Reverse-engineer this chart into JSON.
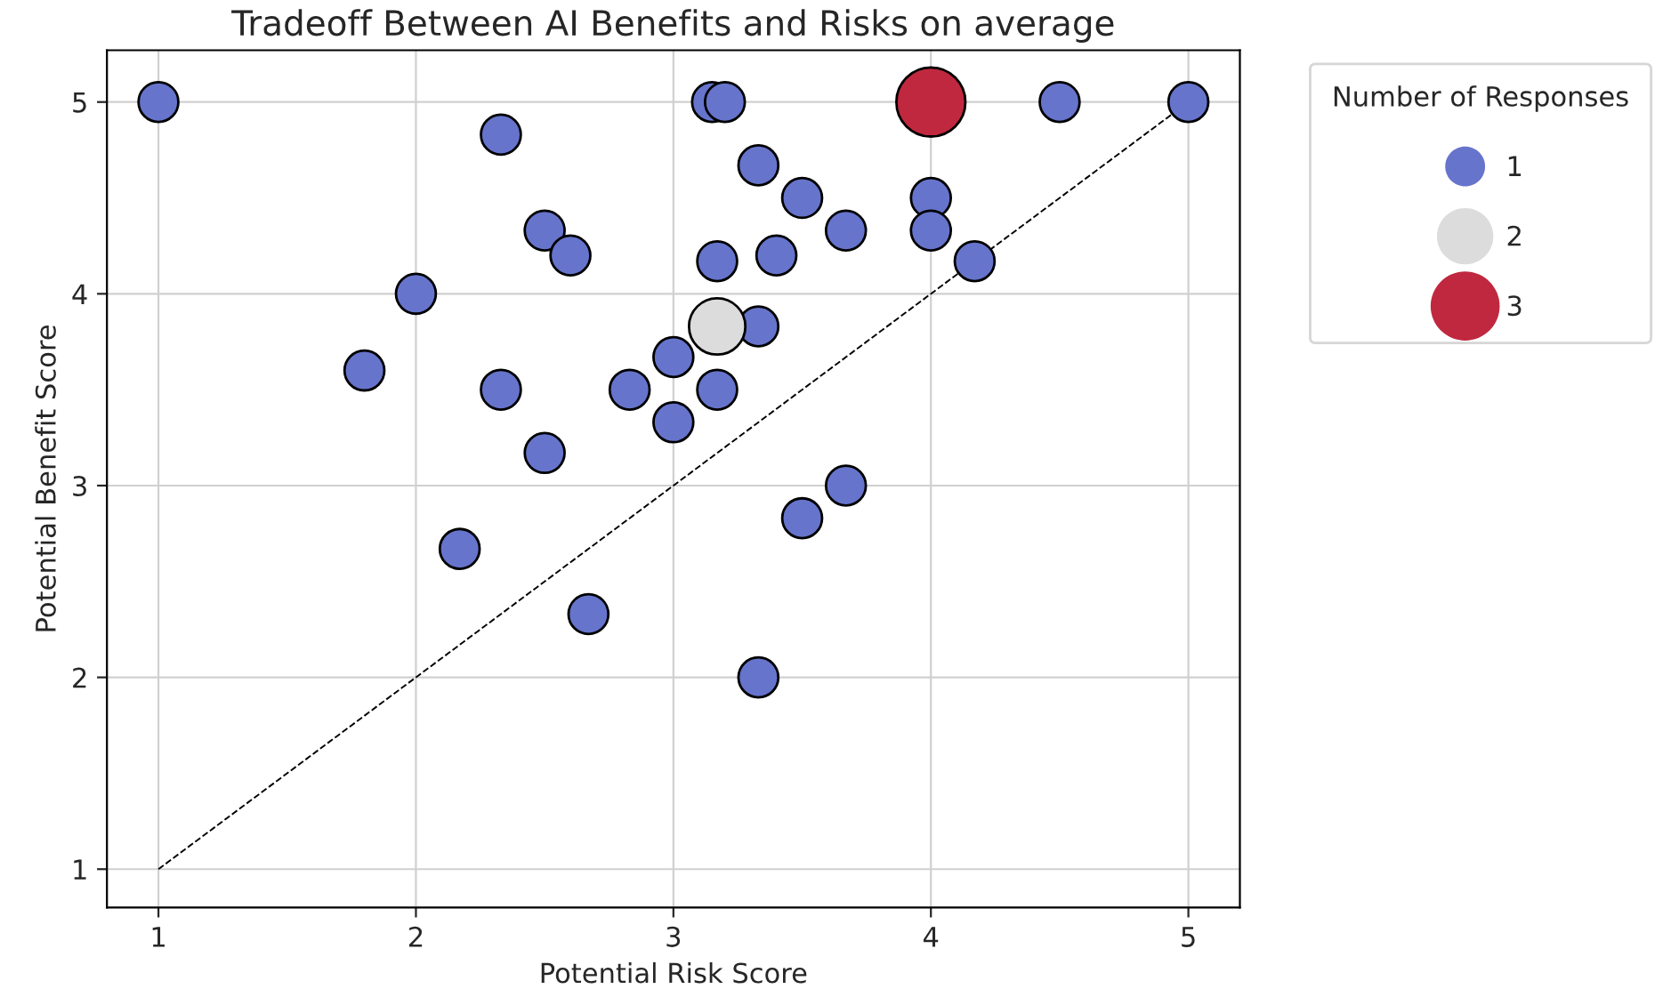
{
  "chart_data": {
    "type": "bubble",
    "title": "Tradeoff Between AI Benefits and Risks on average",
    "xlabel": "Potential Risk Score",
    "ylabel": "Potential Benefit Score",
    "legend_title": "Number of Responses",
    "series": [
      {
        "name": "1",
        "color": "#6674cc",
        "x": [
          1,
          2.33,
          2,
          1.8,
          2.33,
          2.5,
          2.6,
          2.5,
          2.17,
          2.67,
          2.83,
          3,
          3,
          3.17,
          3.17,
          3.15,
          3.2,
          3.33,
          3.33,
          3.33,
          3.4,
          3.5,
          3.5,
          3.67,
          3.67,
          4,
          4,
          4.17,
          4.5,
          5
        ],
        "values": [
          5,
          4.83,
          4,
          3.6,
          3.5,
          4.33,
          4.2,
          3.17,
          2.67,
          2.33,
          3.5,
          3.67,
          3.33,
          3.5,
          4.17,
          5,
          5,
          4.67,
          3.83,
          2,
          4.2,
          4.5,
          2.83,
          4.33,
          3,
          4.5,
          4.33,
          4.17,
          5,
          5
        ],
        "sizes": [
          1,
          1,
          1,
          1,
          1,
          1,
          1,
          1,
          1,
          1,
          1,
          1,
          1,
          1,
          1,
          1,
          1,
          1,
          1,
          1,
          1,
          1,
          1,
          1,
          1,
          1,
          1,
          1,
          1,
          1
        ]
      },
      {
        "name": "2",
        "color": "#dcdcdc",
        "x": [
          3.17
        ],
        "values": [
          3.83
        ],
        "sizes": [
          2
        ]
      },
      {
        "name": "3",
        "color": "#c0283f",
        "x": [
          4
        ],
        "values": [
          5
        ],
        "sizes": [
          3
        ]
      },
      {
        "type": "line",
        "color": "#000000",
        "line_style": "dashed",
        "x": [
          1,
          5
        ],
        "values": [
          1,
          5
        ]
      }
    ],
    "xlim": [
      0.8,
      5.2
    ],
    "ylim": [
      0.8,
      5.27
    ],
    "xticks": [
      1,
      2,
      3,
      4,
      5
    ],
    "yticks": [
      1,
      2,
      3,
      4,
      5
    ],
    "grid": true,
    "size_legend": [
      1,
      2,
      3
    ]
  }
}
